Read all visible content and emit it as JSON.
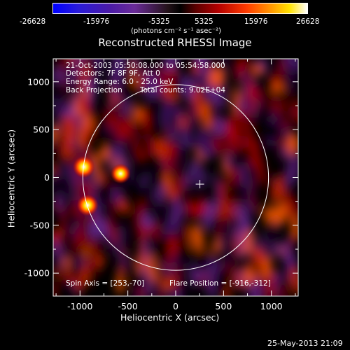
{
  "footer": {
    "timestamp": "25-May-2013 21:09"
  },
  "chart_data": {
    "type": "heatmap",
    "title": "Reconstructed RHESSI Image",
    "colorbar": {
      "ticks": [
        -26628,
        -15976,
        -5325,
        5325,
        15976,
        26628
      ],
      "tick_labels": [
        "-26628",
        "-15976",
        "-5325",
        "5325",
        "15976",
        "26628"
      ],
      "unit_label": "(photons cm⁻² s⁻¹ asec⁻²)",
      "range": [
        -26628,
        26628
      ],
      "colors": [
        "#0000ff",
        "#3b008a",
        "#6a2b98",
        "#000000",
        "#b40000",
        "#ff4a00",
        "#ffd400",
        "#ffffff"
      ]
    },
    "xlabel": "Heliocentric X (arcsec)",
    "ylabel": "Heliocentric Y (arcsec)",
    "xlim": [
      -1280,
      1280
    ],
    "ylim": [
      -1240,
      1240
    ],
    "xticks": [
      -1000,
      -500,
      0,
      500,
      1000
    ],
    "yticks": [
      -1000,
      -500,
      0,
      500,
      1000
    ],
    "tick_labels": {
      "x": [
        "-1000",
        "-500",
        "0",
        "500",
        "1000"
      ],
      "y": [
        "-1000",
        "-500",
        "0",
        "500",
        "1000"
      ]
    },
    "solar_limb_radius": 970,
    "spin_axis_center": [
      253,
      -70
    ],
    "flare_position": [
      -916,
      -312
    ],
    "annotations": {
      "time": "21-Oct-2003 05:50:08.000 to 05:54:58.000",
      "detectors": "Detectors: 7F 8F 9F, Att 0",
      "energy": "Energy Range: 6.0 - 25.0 keV",
      "method": "Back Projection",
      "counts": "Total counts: 9.02E+04",
      "spin_axis": "Spin Axis = [253,-70]",
      "flare_position_label": "Flare Position = [-916,-312]"
    },
    "sources": [
      {
        "x": -960,
        "y": 110,
        "intensity": 26628
      },
      {
        "x": -575,
        "y": 40,
        "intensity": 24000
      },
      {
        "x": -920,
        "y": -290,
        "intensity": 26000
      }
    ]
  }
}
